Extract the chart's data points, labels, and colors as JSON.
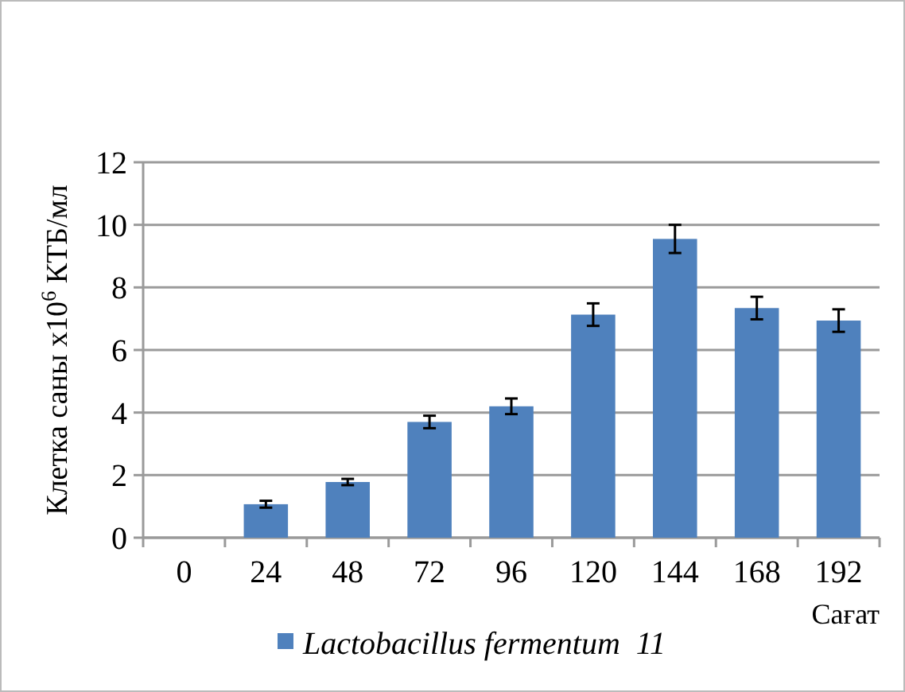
{
  "chart_data": {
    "type": "bar",
    "ylabel": "Клетка саны x10$^{6}$ КТБ/мл",
    "xlabel": "Сағат",
    "categories": [
      "0",
      "24",
      "48",
      "72",
      "96",
      "120",
      "144",
      "168",
      "192"
    ],
    "series": [
      {
        "name": "Lactobacillus fermentum  11",
        "color": "#4f81bd",
        "values": [
          0,
          1.07,
          1.78,
          3.7,
          4.2,
          7.13,
          9.55,
          7.34,
          6.94
        ],
        "errors": [
          null,
          0.11,
          0.1,
          0.2,
          0.25,
          0.36,
          0.45,
          0.36,
          0.36
        ]
      }
    ],
    "ylim": [
      0,
      12
    ],
    "yticks": [
      0,
      2,
      4,
      6,
      8,
      10,
      12
    ],
    "grid": "y",
    "legend": "bottom"
  }
}
